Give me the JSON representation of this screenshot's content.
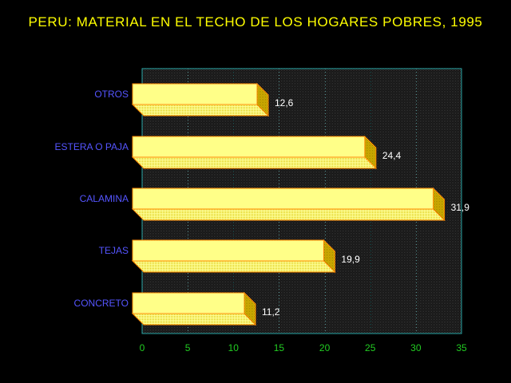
{
  "chart_data": {
    "type": "bar",
    "orientation": "horizontal",
    "title": "PERU: MATERIAL EN EL TECHO DE LOS HOGARES POBRES, 1995",
    "categories": [
      "OTROS",
      "ESTERA O PAJA",
      "CALAMINA",
      "TEJAS",
      "CONCRETO"
    ],
    "values": [
      12.6,
      24.4,
      31.9,
      19.9,
      11.2
    ],
    "value_labels": [
      "12,6",
      "24,4",
      "31,9",
      "19,9",
      "11,2"
    ],
    "xlim": [
      0,
      35
    ],
    "xticks": [
      0,
      5,
      10,
      15,
      20,
      25,
      30,
      35
    ],
    "xlabel": "",
    "ylabel": "",
    "grid": "vertical dotted",
    "legend": "none",
    "colors": {
      "background": "#000000",
      "title": "#ffff00",
      "category_labels": "#5555ff",
      "tick_labels": "#22cc22",
      "value_labels": "#ffffff",
      "plot_border": "#2aa7a7",
      "grid": "#3a7a7a",
      "bar_front": "#ffff88",
      "bar_edge": "#ff8800",
      "bar_side": "#c8a000"
    }
  }
}
